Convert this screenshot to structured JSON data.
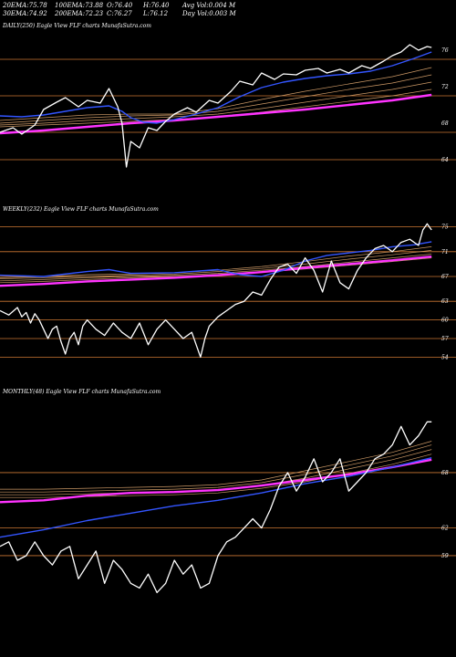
{
  "header": {
    "row1": [
      {
        "label": "20EMA:",
        "value": "75.78"
      },
      {
        "label": "100EMA:",
        "value": "73.88"
      },
      {
        "label": "O:",
        "value": "76.40"
      },
      {
        "label": "H:",
        "value": "76.40"
      },
      {
        "label": "Avg Vol:",
        "value": "0.004",
        "suffix": "M"
      }
    ],
    "row2": [
      {
        "label": "30EMA:",
        "value": "74.92"
      },
      {
        "label": "200EMA:",
        "value": "72.23"
      },
      {
        "label": "C:",
        "value": "76.27"
      },
      {
        "label": "L:",
        "value": "76.12"
      },
      {
        "label": "Day Vol:",
        "value": "0.003",
        "suffix": "M"
      }
    ]
  },
  "colors": {
    "background": "#000000",
    "price": "#ffffff",
    "ema_short": "#3355ff",
    "ema_200": "#ff33ff",
    "ema_bands": "#cc9966",
    "level_lines": "#cc7733"
  },
  "chart_data": [
    {
      "type": "line",
      "panel": "daily",
      "title": "DAILY(250) Eagle  View  FLF charts MunafaSutra.com",
      "yticks": [
        76,
        72,
        68,
        64
      ],
      "ylim": [
        62,
        78
      ],
      "xlim": [
        0,
        100
      ],
      "level_lines": [
        75,
        71,
        67,
        64
      ],
      "series": [
        {
          "role": "price",
          "x": [
            0,
            3,
            5,
            8,
            10,
            13,
            15,
            18,
            20,
            23,
            25,
            27,
            28,
            29,
            30,
            32,
            34,
            36,
            38,
            40,
            43,
            45,
            48,
            50,
            53,
            55,
            58,
            60,
            63,
            65,
            68,
            70,
            73,
            75,
            78,
            80,
            83,
            85,
            88,
            90,
            92,
            94,
            96,
            98,
            99
          ],
          "y": [
            67.0,
            67.5,
            66.8,
            67.8,
            69.5,
            70.3,
            70.8,
            69.8,
            70.5,
            70.2,
            71.8,
            69.8,
            68.0,
            63.2,
            66.0,
            65.3,
            67.5,
            67.2,
            68.2,
            69.0,
            69.7,
            69.2,
            70.5,
            70.2,
            71.5,
            72.6,
            72.2,
            73.5,
            72.8,
            73.4,
            73.3,
            73.8,
            74.0,
            73.5,
            73.9,
            73.5,
            74.3,
            74.0,
            74.8,
            75.4,
            75.8,
            76.6,
            76.0,
            76.4,
            76.3
          ]
        },
        {
          "role": "ema_short",
          "x": [
            0,
            5,
            10,
            15,
            20,
            25,
            28,
            30,
            33,
            36,
            40,
            45,
            50,
            55,
            60,
            65,
            70,
            75,
            80,
            85,
            90,
            95,
            99
          ],
          "y": [
            68.8,
            68.7,
            68.9,
            69.3,
            69.7,
            69.9,
            69.3,
            68.6,
            68.1,
            68.0,
            68.4,
            69.0,
            69.7,
            70.9,
            71.9,
            72.5,
            72.9,
            73.2,
            73.4,
            73.7,
            74.3,
            75.1,
            75.8
          ]
        },
        {
          "role": "ema_long",
          "x": [
            0,
            10,
            20,
            30,
            40,
            50,
            60,
            70,
            80,
            90,
            99
          ],
          "y": [
            66.9,
            67.2,
            67.6,
            68.0,
            68.3,
            68.7,
            69.1,
            69.5,
            70.0,
            70.5,
            71.1
          ]
        },
        {
          "role": "ema_band",
          "x": [
            0,
            10,
            20,
            30,
            40,
            50,
            60,
            70,
            80,
            90,
            99
          ],
          "y": [
            68.3,
            68.6,
            68.9,
            69.0,
            69.0,
            69.6,
            70.6,
            71.5,
            72.3,
            73.1,
            74.1
          ]
        },
        {
          "role": "ema_band",
          "x": [
            0,
            10,
            20,
            30,
            40,
            50,
            60,
            70,
            80,
            90,
            99
          ],
          "y": [
            68.0,
            68.3,
            68.6,
            68.8,
            68.9,
            69.3,
            70.1,
            70.9,
            71.7,
            72.4,
            73.3
          ]
        },
        {
          "role": "ema_band",
          "x": [
            0,
            10,
            20,
            30,
            40,
            50,
            60,
            70,
            80,
            90,
            99
          ],
          "y": [
            67.8,
            68.0,
            68.3,
            68.5,
            68.7,
            69.0,
            69.6,
            70.3,
            71.0,
            71.7,
            72.5
          ]
        },
        {
          "role": "ema_band",
          "x": [
            0,
            10,
            20,
            30,
            40,
            50,
            60,
            70,
            80,
            90,
            99
          ],
          "y": [
            67.6,
            67.8,
            68.0,
            68.2,
            68.4,
            68.7,
            69.2,
            69.8,
            70.4,
            71.0,
            71.7
          ]
        }
      ]
    },
    {
      "type": "line",
      "panel": "weekly",
      "title": "WEEKLY(232) Eagle  View  FLF charts MunafaSutra.com",
      "yticks": [
        75,
        71,
        67,
        63,
        60,
        57,
        54
      ],
      "ylim": [
        52,
        77
      ],
      "xlim": [
        0,
        100
      ],
      "level_lines": [
        75,
        71,
        67,
        63,
        60,
        57,
        54
      ],
      "series": [
        {
          "role": "price",
          "x": [
            0,
            2,
            4,
            5,
            6,
            7,
            8,
            9,
            10,
            11,
            12,
            13,
            14,
            15,
            16,
            17,
            18,
            19,
            20,
            22,
            24,
            26,
            28,
            30,
            32,
            34,
            36,
            38,
            40,
            42,
            44,
            45,
            46,
            47,
            48,
            50,
            52,
            54,
            56,
            58,
            60,
            62,
            64,
            66,
            68,
            70,
            72,
            74,
            76,
            78,
            80,
            82,
            84,
            86,
            88,
            90,
            92,
            94,
            96,
            97,
            98,
            99
          ],
          "y": [
            61.5,
            60.8,
            62.0,
            60.5,
            61.2,
            59.5,
            61.0,
            60.0,
            58.5,
            57.0,
            58.5,
            59.0,
            56.5,
            54.5,
            57.0,
            58.0,
            56.0,
            59.0,
            60.0,
            58.5,
            57.5,
            59.5,
            58.0,
            57.0,
            59.5,
            56.0,
            58.5,
            60.0,
            58.5,
            57.0,
            58.0,
            56.0,
            54.0,
            57.0,
            59.0,
            60.5,
            61.5,
            62.5,
            63.0,
            64.5,
            64.0,
            66.5,
            68.5,
            69.0,
            67.5,
            70.0,
            68.0,
            64.5,
            69.5,
            66.0,
            65.0,
            68.0,
            70.0,
            71.5,
            72.0,
            71.0,
            72.5,
            73.0,
            72.0,
            74.5,
            75.5,
            74.5
          ]
        },
        {
          "role": "ema_short",
          "x": [
            0,
            10,
            20,
            25,
            30,
            40,
            50,
            55,
            60,
            65,
            70,
            75,
            80,
            85,
            90,
            95,
            99
          ],
          "y": [
            67.2,
            67.0,
            67.8,
            68.1,
            67.5,
            67.6,
            68.1,
            67.3,
            67.0,
            68.0,
            69.5,
            70.4,
            70.8,
            71.2,
            71.8,
            72.1,
            72.6
          ]
        },
        {
          "role": "ema_long",
          "x": [
            0,
            10,
            20,
            30,
            40,
            50,
            60,
            70,
            80,
            90,
            99
          ],
          "y": [
            65.5,
            65.8,
            66.2,
            66.5,
            66.8,
            67.2,
            67.7,
            68.4,
            69.0,
            69.6,
            70.2
          ]
        },
        {
          "role": "ema_band",
          "x": [
            0,
            10,
            20,
            30,
            40,
            50,
            60,
            70,
            80,
            90,
            99
          ],
          "y": [
            66.8,
            67.0,
            67.3,
            67.4,
            67.6,
            68.0,
            68.6,
            69.4,
            70.3,
            71.0,
            71.8
          ]
        },
        {
          "role": "ema_band",
          "x": [
            0,
            10,
            20,
            30,
            40,
            50,
            60,
            70,
            80,
            90,
            99
          ],
          "y": [
            66.6,
            66.8,
            67.0,
            67.2,
            67.4,
            67.8,
            68.3,
            69.0,
            69.8,
            70.5,
            71.2
          ]
        },
        {
          "role": "ema_band",
          "x": [
            0,
            10,
            20,
            30,
            40,
            50,
            60,
            70,
            80,
            90,
            99
          ],
          "y": [
            66.3,
            66.5,
            66.8,
            67.0,
            67.2,
            67.5,
            68.0,
            68.6,
            69.3,
            70.0,
            70.6
          ]
        },
        {
          "role": "ema_band",
          "x": [
            0,
            10,
            20,
            30,
            40,
            50,
            60,
            70,
            80,
            90,
            99
          ],
          "y": [
            66.0,
            66.2,
            66.5,
            66.8,
            67.0,
            67.3,
            67.7,
            68.2,
            68.8,
            69.4,
            70.0
          ]
        }
      ]
    },
    {
      "type": "line",
      "panel": "monthly",
      "title": "MONTHLY(48) Eagle  View  FLF charts MunafaSutra.com",
      "yticks": [
        68,
        62,
        59
      ],
      "ylim": [
        50,
        76
      ],
      "xlim": [
        0,
        100
      ],
      "level_lines": [
        68,
        62,
        59
      ],
      "series": [
        {
          "role": "price",
          "x": [
            0,
            2,
            4,
            6,
            8,
            10,
            12,
            14,
            16,
            18,
            20,
            22,
            24,
            26,
            28,
            30,
            32,
            34,
            36,
            38,
            40,
            42,
            44,
            46,
            48,
            50,
            52,
            54,
            56,
            58,
            60,
            62,
            64,
            66,
            68,
            70,
            72,
            74,
            76,
            78,
            80,
            82,
            84,
            86,
            88,
            90,
            92,
            94,
            96,
            98,
            99
          ],
          "y": [
            60.0,
            60.5,
            58.5,
            59.0,
            60.5,
            59.0,
            58.0,
            59.5,
            60.0,
            56.5,
            58.0,
            59.5,
            56.0,
            58.5,
            57.5,
            56.0,
            55.5,
            57.0,
            55.0,
            56.0,
            58.5,
            57.0,
            58.0,
            55.5,
            56.0,
            59.0,
            60.5,
            61.0,
            62.0,
            63.0,
            62.0,
            64.0,
            66.5,
            68.0,
            66.0,
            67.5,
            69.5,
            67.0,
            68.0,
            69.5,
            66.0,
            67.0,
            68.0,
            69.5,
            70.0,
            71.0,
            73.0,
            71.0,
            72.0,
            73.5,
            73.5
          ]
        },
        {
          "role": "ema_short",
          "x": [
            0,
            10,
            20,
            30,
            40,
            50,
            60,
            70,
            80,
            90,
            99
          ],
          "y": [
            61.0,
            61.8,
            62.8,
            63.6,
            64.4,
            65.0,
            65.8,
            66.8,
            67.6,
            68.6,
            69.6
          ]
        },
        {
          "role": "ema_long",
          "x": [
            0,
            10,
            20,
            30,
            40,
            50,
            60,
            70,
            80,
            90,
            99
          ],
          "y": [
            64.8,
            65.0,
            65.5,
            65.8,
            65.9,
            66.1,
            66.6,
            67.2,
            67.8,
            68.6,
            69.4
          ]
        },
        {
          "role": "ema_band",
          "x": [
            0,
            10,
            20,
            30,
            40,
            50,
            60,
            70,
            80,
            90,
            99
          ],
          "y": [
            66.2,
            66.2,
            66.3,
            66.4,
            66.5,
            66.7,
            67.2,
            68.2,
            69.2,
            70.2,
            71.4
          ]
        },
        {
          "role": "ema_band",
          "x": [
            0,
            10,
            20,
            30,
            40,
            50,
            60,
            70,
            80,
            90,
            99
          ],
          "y": [
            65.9,
            65.9,
            66.0,
            66.1,
            66.2,
            66.4,
            66.9,
            67.8,
            68.8,
            69.8,
            71.0
          ]
        },
        {
          "role": "ema_band",
          "x": [
            0,
            10,
            20,
            30,
            40,
            50,
            60,
            70,
            80,
            90,
            99
          ],
          "y": [
            65.6,
            65.6,
            65.7,
            65.8,
            65.9,
            66.1,
            66.6,
            67.4,
            68.4,
            69.4,
            70.5
          ]
        },
        {
          "role": "ema_band",
          "x": [
            0,
            10,
            20,
            30,
            40,
            50,
            60,
            70,
            80,
            90,
            99
          ],
          "y": [
            65.3,
            65.3,
            65.4,
            65.5,
            65.6,
            65.8,
            66.3,
            67.0,
            67.9,
            68.9,
            70.0
          ]
        }
      ]
    }
  ]
}
